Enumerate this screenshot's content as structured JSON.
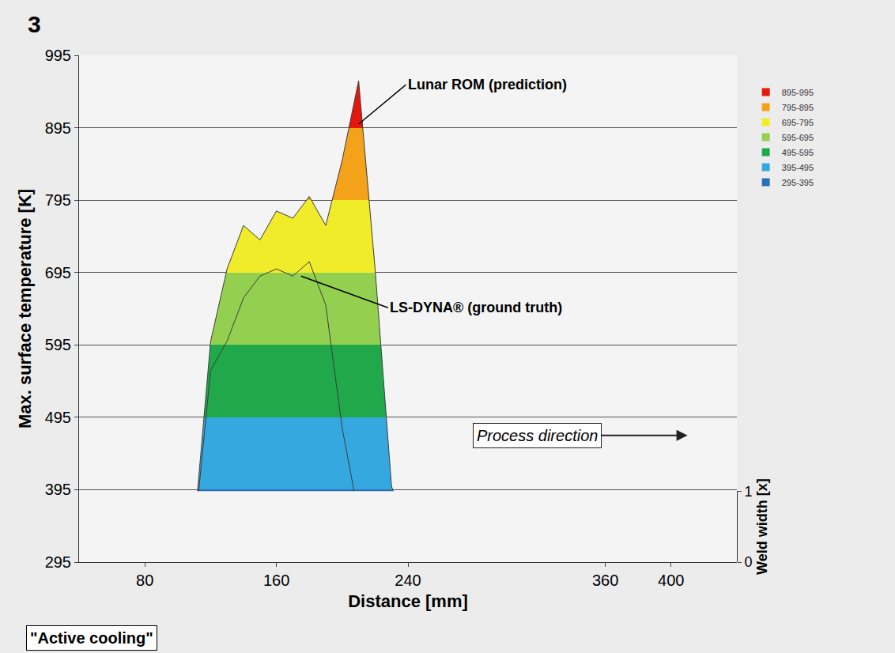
{
  "chart_data": {
    "type": "area",
    "title": "3",
    "x_label": "Distance [mm]",
    "y_label": "Max. surface temperature [K]",
    "y2_label": "Weld width [x]",
    "x": [
      40,
      50,
      60,
      70,
      80,
      90,
      100,
      110,
      120,
      130,
      140,
      150,
      160,
      170,
      180,
      190,
      200,
      210,
      220,
      230,
      240,
      250,
      260,
      270,
      280,
      290,
      300,
      310,
      320,
      330,
      340,
      350,
      360,
      370,
      380,
      390,
      400,
      410,
      420,
      430,
      440
    ],
    "series": [
      {
        "name": "Lunar ROM (prediction)",
        "values": [
          295,
          295,
          295,
          295,
          295,
          295,
          295,
          340,
          600,
          700,
          760,
          740,
          780,
          770,
          800,
          760,
          850,
          960,
          700,
          400,
          330,
          310,
          300,
          295,
          295,
          295,
          295,
          295,
          295,
          295,
          295,
          295,
          295,
          295,
          295,
          295,
          295,
          295,
          295,
          295,
          295
        ]
      },
      {
        "name": "LS-DYNA® (ground truth)",
        "values": [
          295,
          295,
          295,
          295,
          295,
          295,
          295,
          330,
          560,
          600,
          660,
          690,
          700,
          690,
          710,
          650,
          480,
          360,
          320,
          305,
          295,
          295,
          295,
          295,
          295,
          295,
          295,
          295,
          295,
          295,
          295,
          295,
          295,
          295,
          295,
          295,
          295,
          295,
          295,
          295,
          295
        ]
      }
    ],
    "xlim": [
      40,
      440
    ],
    "xticks": [
      80,
      160,
      240,
      360,
      400
    ],
    "ylim": [
      295,
      995
    ],
    "yticks": [
      295,
      395,
      495,
      595,
      695,
      795,
      895,
      995
    ],
    "y2lim": [
      0,
      1
    ],
    "y2ticks": [
      0,
      1
    ],
    "bands": [
      {
        "label": "895-995",
        "lo": 895,
        "hi": 995,
        "color": "#e3170d"
      },
      {
        "label": "795-895",
        "lo": 795,
        "hi": 895,
        "color": "#f5a21b"
      },
      {
        "label": "695-795",
        "lo": 695,
        "hi": 795,
        "color": "#f0ec2a"
      },
      {
        "label": "595-695",
        "lo": 595,
        "hi": 695,
        "color": "#94d050"
      },
      {
        "label": "495-595",
        "lo": 495,
        "hi": 595,
        "color": "#21a84a"
      },
      {
        "label": "395-495",
        "lo": 395,
        "hi": 495,
        "color": "#35a9df"
      },
      {
        "label": "295-395",
        "lo": 295,
        "hi": 395,
        "color": "#2a6fb4"
      }
    ],
    "annotations": [
      "Process direction",
      "\"Active cooling\""
    ],
    "legend": "right",
    "grid": true
  }
}
